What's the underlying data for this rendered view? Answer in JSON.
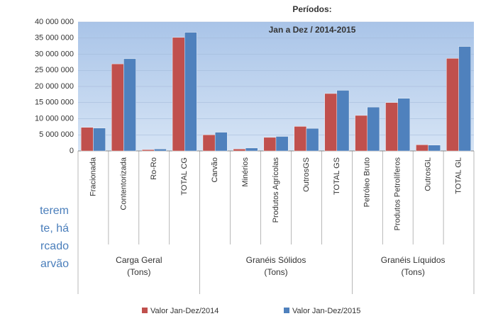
{
  "chart_data": {
    "type": "bar",
    "title": "Períodos:",
    "subtitle": "Jan a Dez / 2014-2015",
    "groups": [
      {
        "label": [
          "Carga Geral",
          "(Tons)"
        ],
        "categories": [
          "Fracionada",
          "Contentorizada",
          "Ro-Ro",
          "TOTAL CG"
        ]
      },
      {
        "label": [
          "Granéis Sólidos",
          "(Tons)"
        ],
        "categories": [
          "Carvão",
          "Minérios",
          "Produtos Agrícolas",
          "OutrosGS",
          "TOTAL GS"
        ]
      },
      {
        "label": [
          "Granéis Líquidos",
          "(Tons)"
        ],
        "categories": [
          "Petróleo Bruto",
          "Produtos Petrolíferos",
          "OutrosGL",
          "TOTAL GL"
        ]
      }
    ],
    "series": [
      {
        "name": "Valor Jan-Dez/2014",
        "color": "#c0504d",
        "values": [
          7300000,
          27000000,
          400000,
          35200000,
          5000000,
          600000,
          4200000,
          7600000,
          17800000,
          11000000,
          15000000,
          1900000,
          28700000
        ]
      },
      {
        "name": "Valor  Jan-Dez/2015",
        "color": "#4f81bd",
        "values": [
          7100000,
          28600000,
          600000,
          36800000,
          5800000,
          900000,
          4500000,
          7000000,
          18800000,
          13600000,
          16300000,
          1800000,
          32400000
        ]
      }
    ],
    "ylim": [
      0,
      40000000
    ],
    "yticks": [
      0,
      {
        "value": 5000000,
        "label": "5 000 000"
      },
      {
        "value": 10000000,
        "label": "10 000 000"
      },
      {
        "value": 15000000,
        "label": "15 000 000"
      },
      {
        "value": 20000000,
        "label": "20 000 000"
      },
      {
        "value": 25000000,
        "label": "25 000 000"
      },
      {
        "value": 30000000,
        "label": "30 000 000"
      },
      {
        "value": 35000000,
        "label": "35 000 000"
      },
      {
        "value": 40000000,
        "label": "40 000 000"
      }
    ],
    "legend": "bottom",
    "side_text": [
      "terem",
      "te, há",
      "rcado",
      "arvão"
    ]
  }
}
